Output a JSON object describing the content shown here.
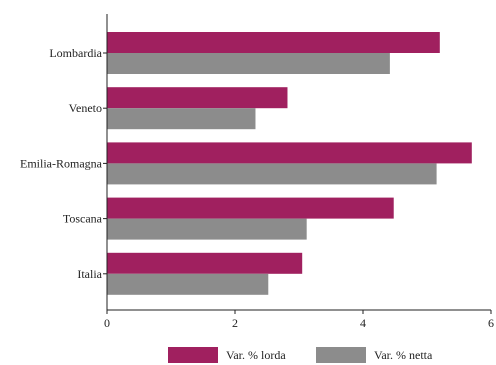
{
  "chart_data": {
    "type": "bar",
    "orientation": "horizontal",
    "categories": [
      "Lombardia",
      "Veneto",
      "Emilia-Romagna",
      "Toscana",
      "Italia"
    ],
    "series": [
      {
        "name": "Var. % lorda",
        "color": "#a0205f",
        "values": [
          5.2,
          2.82,
          5.7,
          4.48,
          3.05
        ]
      },
      {
        "name": "Var. % netta",
        "color": "#8c8c8c",
        "values": [
          4.42,
          2.32,
          5.15,
          3.12,
          2.52
        ]
      }
    ],
    "x_ticks": [
      0,
      2,
      4,
      6
    ],
    "xlim": [
      0,
      6
    ],
    "xlabel": "",
    "ylabel": "",
    "title": "",
    "grid": false,
    "legend_position": "bottom"
  }
}
